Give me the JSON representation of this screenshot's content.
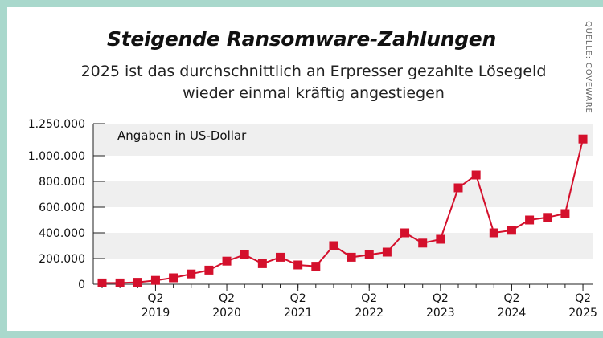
{
  "header": {
    "title": "Steigende Ransomware-Zahlungen",
    "subtitle": "2025 ist das durchschnittlich an Erpresser gezahlte Lösegeld wieder einmal kräftig angestiegen",
    "source": "QUELLE: COVEWARE"
  },
  "colors": {
    "line": "#d4102c",
    "band": "#efefef",
    "frame": "#a9d8cc",
    "text": "#111111"
  },
  "chart_data": {
    "type": "line",
    "title": "Steigende Ransomware-Zahlungen",
    "annotation": "Angaben in US-Dollar",
    "ylim": [
      0,
      1250000
    ],
    "y_ticks": [
      0,
      200000,
      400000,
      600000,
      800000,
      1000000,
      1250000
    ],
    "y_tick_labels": [
      "0",
      "200.000",
      "400.000",
      "600.000",
      "800.000",
      "1.000.000",
      "1.250.000"
    ],
    "x_ticks": [
      {
        "q": "Q2",
        "year": "2019",
        "index": 3
      },
      {
        "q": "Q2",
        "year": "2020",
        "index": 7
      },
      {
        "q": "Q2",
        "year": "2021",
        "index": 11
      },
      {
        "q": "Q2",
        "year": "2022",
        "index": 15
      },
      {
        "q": "Q2",
        "year": "2023",
        "index": 19
      },
      {
        "q": "Q2",
        "year": "2024",
        "index": 23
      },
      {
        "q": "Q2",
        "year": "2025",
        "index": 27
      }
    ],
    "grid": "alternating horizontal bands",
    "series": [
      {
        "values": [
          10000,
          10000,
          15000,
          30000,
          50000,
          80000,
          110000,
          180000,
          230000,
          160000,
          210000,
          150000,
          140000,
          300000,
          210000,
          230000,
          250000,
          400000,
          320000,
          350000,
          750000,
          850000,
          400000,
          420000,
          500000,
          520000,
          550000,
          1130000
        ]
      }
    ]
  }
}
